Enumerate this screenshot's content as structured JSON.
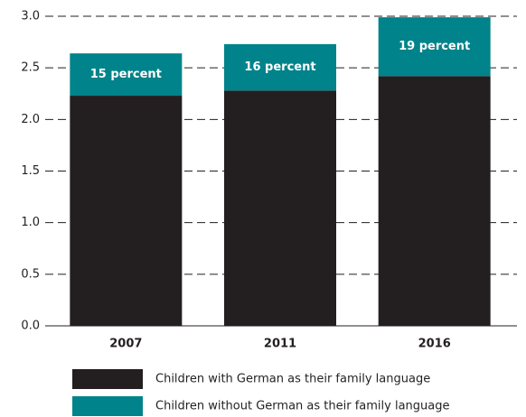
{
  "chart_data": {
    "type": "stacked-bar",
    "categories": [
      "2007",
      "2011",
      "2016"
    ],
    "series": [
      {
        "name": "Children with German as their family language",
        "color": "#231f20",
        "values": [
          2.23,
          2.28,
          2.42
        ]
      },
      {
        "name": "Children without German as their family language",
        "color": "#00838a",
        "values": [
          0.41,
          0.45,
          0.57
        ]
      }
    ],
    "annotations": [
      "15 percent",
      "16 percent",
      "19 percent"
    ],
    "ylim": [
      0,
      3.0
    ],
    "yticks": [
      {
        "value": 0,
        "label": "0.0"
      },
      {
        "value": 0.5,
        "label": "0.5"
      },
      {
        "value": 1,
        "label": "1.0"
      },
      {
        "value": 1.5,
        "label": "1.5"
      },
      {
        "value": 2,
        "label": "2.0"
      },
      {
        "value": 2.5,
        "label": "2.5"
      },
      {
        "value": 3,
        "label": "3.0"
      }
    ],
    "grid": true
  }
}
